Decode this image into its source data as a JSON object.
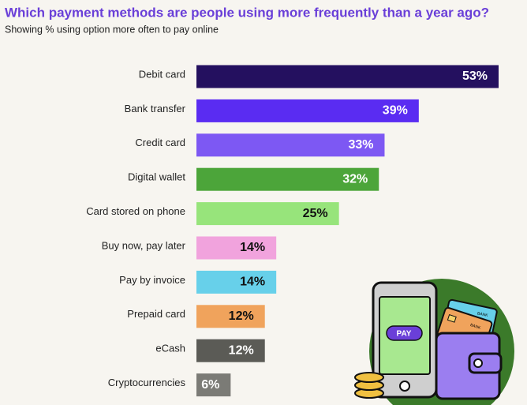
{
  "chart_data": {
    "type": "bar",
    "orientation": "horizontal",
    "title": "Which payment methods are people using more frequently than a year ago?",
    "subtitle": "Showing % using option more often to pay online",
    "categories": [
      "Debit card",
      "Bank transfer",
      "Credit card",
      "Digital wallet",
      "Card stored on phone",
      "Buy now, pay later",
      "Pay by invoice",
      "Prepaid card",
      "eCash",
      "Cryptocurrencies"
    ],
    "values": [
      53,
      39,
      33,
      32,
      25,
      14,
      14,
      12,
      12,
      6
    ],
    "value_labels": [
      "53%",
      "39%",
      "33%",
      "32%",
      "25%",
      "14%",
      "14%",
      "12%",
      "12%",
      "6%"
    ],
    "colors": [
      "#24105f",
      "#5a2cf2",
      "#7d58f3",
      "#4ca53a",
      "#97e47b",
      "#f1a3dd",
      "#67d0ea",
      "#f0a35c",
      "#5b5b56",
      "#7b7b76"
    ],
    "illustration": {
      "button": "PAY",
      "card_labels": [
        "BANK",
        "BANK"
      ]
    }
  }
}
